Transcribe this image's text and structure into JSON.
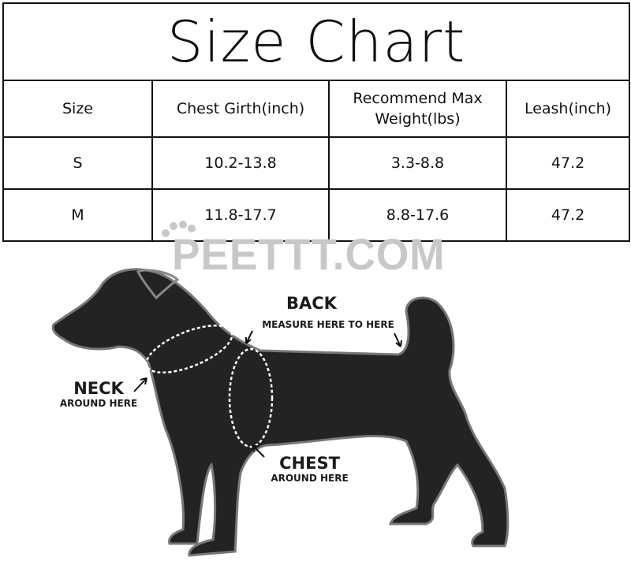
{
  "title": "Size Chart",
  "headers": [
    "Size",
    "Chest Girth(inch)",
    "Recommend Max Weight(lbs)",
    "Leash(inch)"
  ],
  "rows": [
    [
      "S",
      "10.2-13.8",
      "3.3-8.8",
      "47.2"
    ],
    [
      "M",
      "11.8-17.7",
      "8.8-17.6",
      "47.2"
    ]
  ],
  "watermark": "PEETTT.COM",
  "diagram": {
    "back_title": "BACK",
    "back_sub": "MEASURE HERE TO HERE",
    "neck_title": "NECK",
    "neck_sub": "AROUND HERE",
    "chest_title": "CHEST",
    "chest_sub": "AROUND HERE"
  }
}
